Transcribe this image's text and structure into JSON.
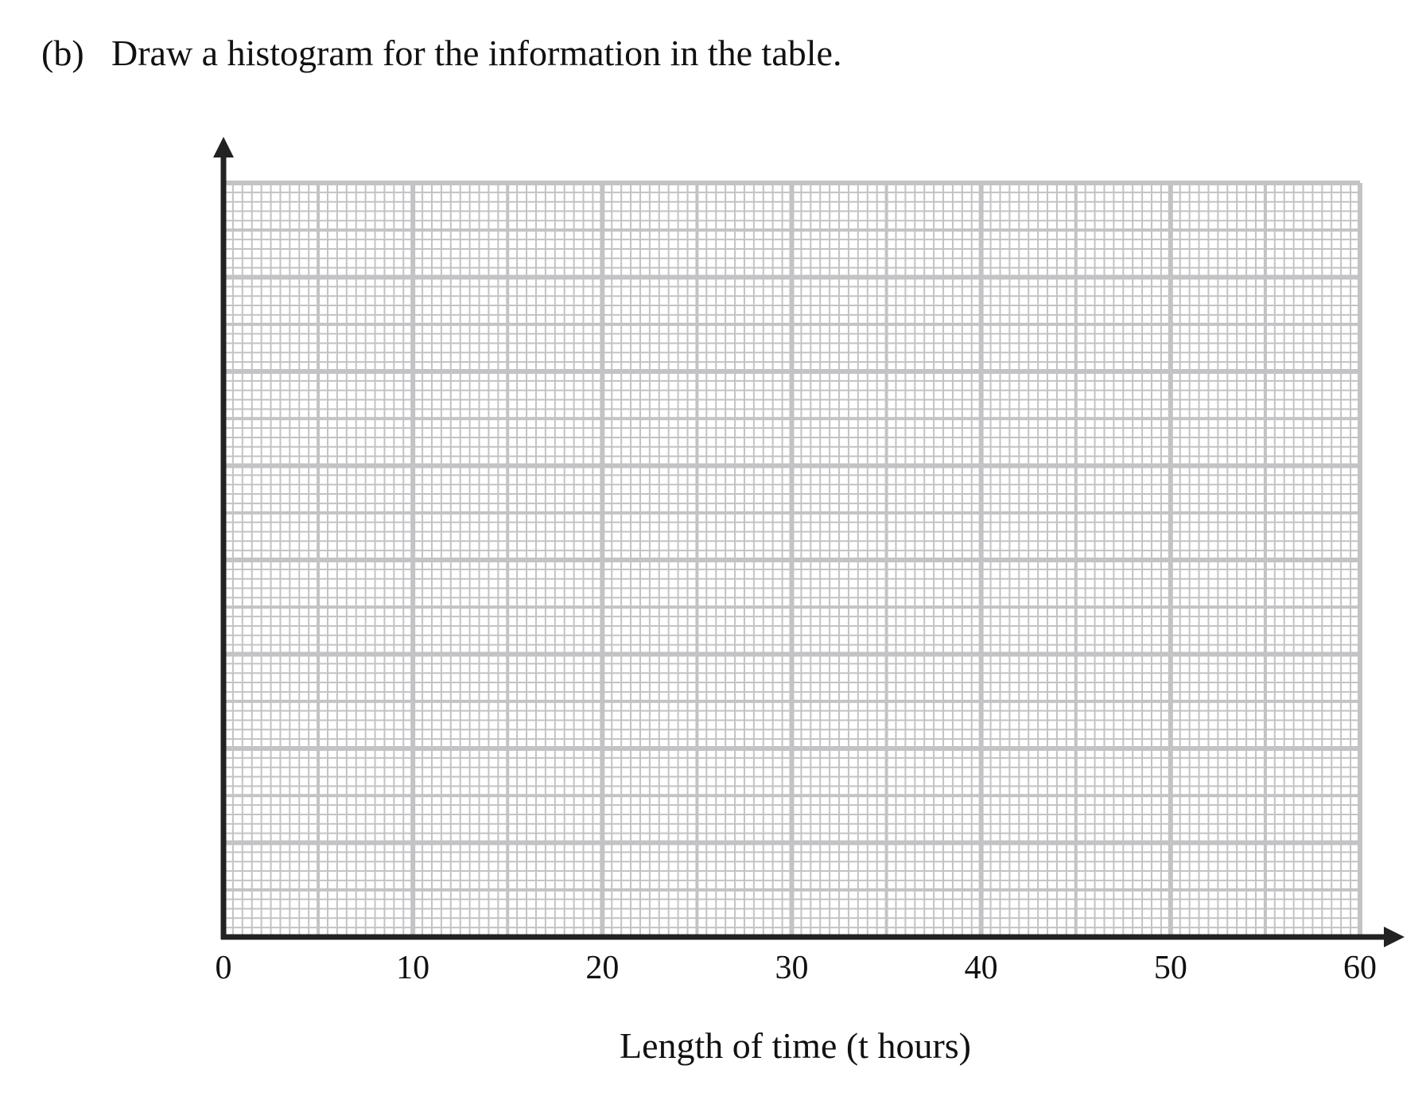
{
  "question": {
    "label": "(b)",
    "text": "Draw a histogram for the information in the table."
  },
  "chart_data": {
    "type": "histogram",
    "xlabel": "Length of time (t hours)",
    "xlim": [
      0,
      60
    ],
    "xticks": [
      0,
      10,
      20,
      30,
      40,
      50,
      60
    ]
  }
}
